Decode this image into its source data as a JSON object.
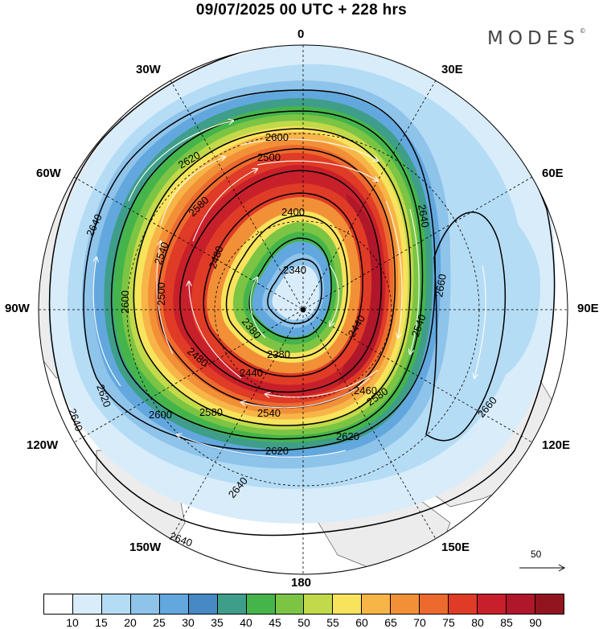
{
  "title": "09/07/2025  00 UTC  + 228 hrs",
  "brand": "MODES",
  "brand_mark": "©",
  "longitude_labels": {
    "top": "0",
    "top_right": "30E",
    "right_upper": "60E",
    "right": "90E",
    "right_lower": "120E",
    "bottom_right": "150E",
    "bottom": "180",
    "bottom_left": "150W",
    "left_lower": "120W",
    "left": "90W",
    "left_upper": "60W",
    "top_left": "30W"
  },
  "contour_labels": [
    "2340",
    "2380",
    "2380",
    "2400",
    "2440",
    "2440",
    "2460",
    "2480",
    "2480",
    "2500",
    "2500",
    "2540",
    "2540",
    "2540",
    "2580",
    "2580",
    "2580",
    "2600",
    "2600",
    "2600",
    "2620",
    "2620",
    "2620",
    "2620",
    "2640",
    "2640",
    "2640",
    "2640",
    "2640",
    "2660",
    "2660"
  ],
  "vector_reference": {
    "label": "50",
    "arrow": "right-arrow"
  },
  "colorbar": {
    "colors": [
      "#ffffff",
      "#d8ecfa",
      "#b5dcf5",
      "#8ec3ea",
      "#62a8de",
      "#4689c3",
      "#3f9e8a",
      "#45b54b",
      "#7cc444",
      "#c2d94a",
      "#f8e35d",
      "#f7b547",
      "#f29037",
      "#ec6a2e",
      "#df3b26",
      "#c8202a",
      "#b0172a",
      "#90151e"
    ],
    "ticks": [
      "10",
      "15",
      "20",
      "25",
      "30",
      "35",
      "40",
      "45",
      "50",
      "55",
      "60",
      "65",
      "70",
      "75",
      "80",
      "85",
      "90"
    ]
  },
  "land_color": "#ececec",
  "coast_color": "#444444"
}
